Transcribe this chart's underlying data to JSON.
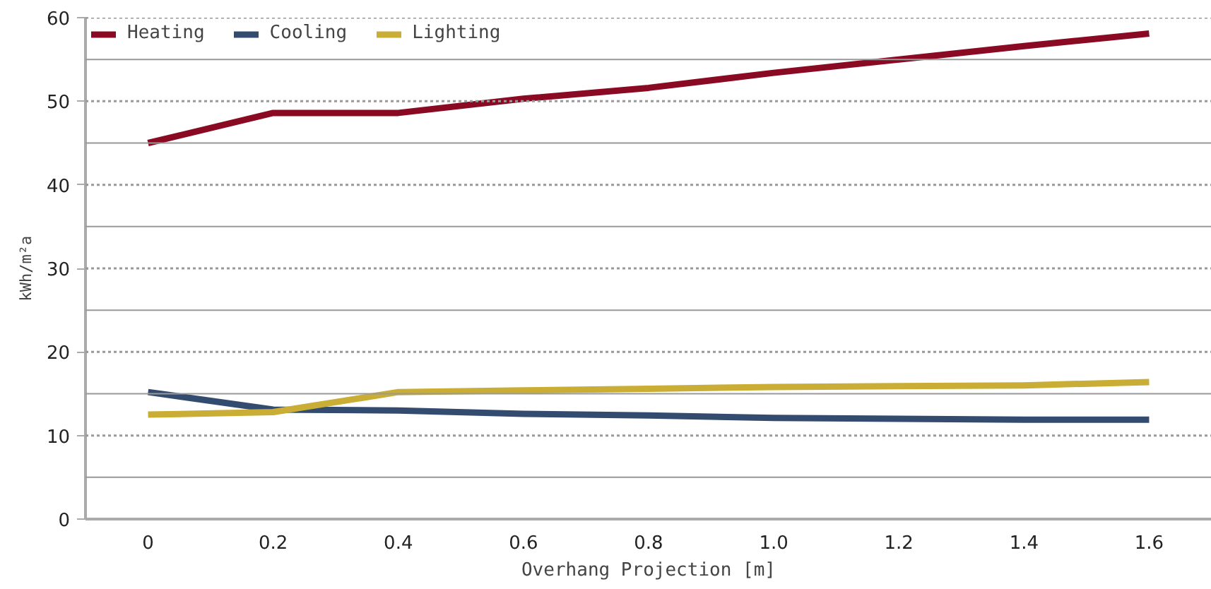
{
  "chart_data": {
    "type": "line",
    "xlabel": "Overhang Projection [m]",
    "ylabel": "kWh/m²a",
    "x": [
      0,
      0.2,
      0.4,
      0.6,
      0.8,
      1.0,
      1.2,
      1.4,
      1.6
    ],
    "series": [
      {
        "name": "Heating",
        "color": "#8b0a23",
        "values": [
          45.0,
          48.6,
          48.6,
          50.3,
          51.6,
          53.4,
          55.0,
          56.6,
          58.1
        ]
      },
      {
        "name": "Cooling",
        "color": "#344b70",
        "values": [
          15.2,
          13.1,
          13.0,
          12.6,
          12.4,
          12.1,
          12.0,
          11.9,
          11.9
        ]
      },
      {
        "name": "Lighting",
        "color": "#c9ad35",
        "values": [
          12.5,
          12.8,
          15.2,
          15.4,
          15.6,
          15.8,
          15.9,
          16.0,
          16.4
        ]
      }
    ],
    "xlim": [
      -0.1,
      1.7
    ],
    "ylim": [
      0,
      60
    ],
    "xticks": [
      0,
      0.2,
      0.4,
      0.6,
      0.8,
      {
        "value": 1.0,
        "label": "1.0"
      },
      1.2,
      1.4,
      1.6
    ],
    "yticks": [
      0,
      {
        "value": 5,
        "label": null
      },
      10,
      {
        "value": 15,
        "label": null
      },
      20,
      {
        "value": 25,
        "label": null
      },
      30,
      {
        "value": 35,
        "label": null
      },
      40,
      {
        "value": 45,
        "label": null
      },
      50,
      {
        "value": 55,
        "label": null
      },
      60
    ],
    "grid": "y",
    "legend": "top left",
    "marker": "none",
    "line_style": "solid"
  }
}
